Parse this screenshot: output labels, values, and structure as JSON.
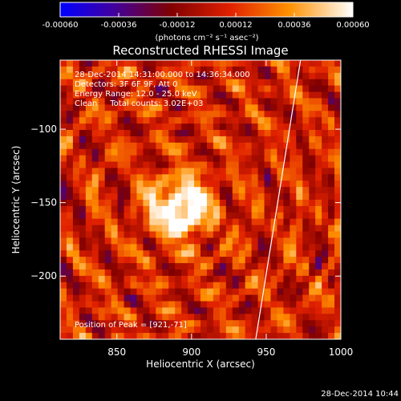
{
  "chart_data": {
    "type": "heatmap",
    "title": "Reconstructed RHESSI Image",
    "xlabel": "Heliocentric X (arcsec)",
    "ylabel": "Heliocentric Y (arcsec)",
    "xlim": [
      812,
      1000
    ],
    "ylim": [
      -243,
      -53
    ],
    "x_ticks": [
      850,
      900,
      950,
      1000
    ],
    "y_ticks": [
      -100,
      -150,
      -200
    ],
    "colorbar": {
      "ticks": [
        -0.0006,
        -0.00036,
        -0.00012,
        0.00012,
        0.00036,
        0.0006
      ],
      "tick_labels": [
        "-0.00060",
        "-0.00036",
        "-0.00012",
        "0.00012",
        "0.00036",
        "0.00060"
      ],
      "range": [
        -0.0006,
        0.0006
      ],
      "units": "(photons cm⁻² s⁻¹ asec⁻²)"
    },
    "annotations": [
      "28-Dec-2014 14:31:00.000 to 14:36:34.000",
      "Detectors: 3F 6F 9F, Att 0",
      "Energy Range: 12.0 - 25.0 keV",
      "Clean     Total counts: 3.02E+03"
    ],
    "peak_label": "Position of Peak = [921,-71]",
    "peak": {
      "x": 921,
      "y": -71
    },
    "limb_line": {
      "x1": 943,
      "y1": -243,
      "x2": 973,
      "y2": -53
    },
    "grid": false
  },
  "footer": {
    "timestamp": "28-Dec-2014 10:44"
  },
  "colors": {
    "background": "#000000",
    "text": "#ffffff",
    "limb": "#ffffff"
  }
}
